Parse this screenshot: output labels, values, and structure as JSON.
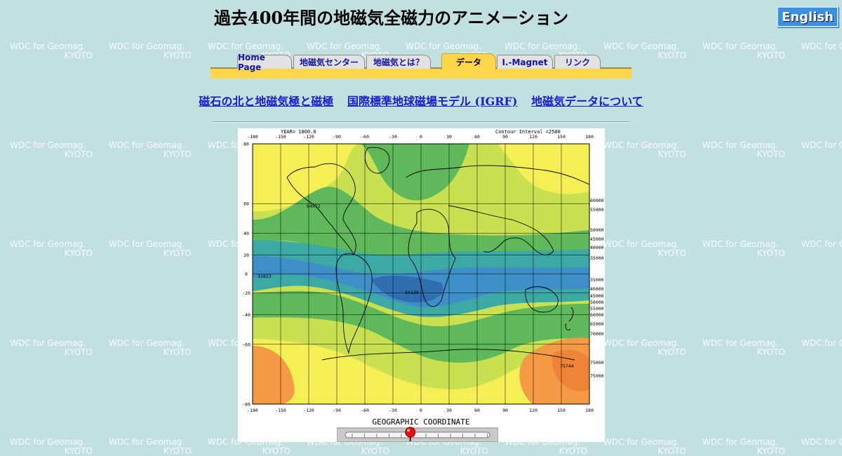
{
  "watermark": {
    "line1": "WDC for Geomag.",
    "line2": "KYOTO"
  },
  "header": {
    "title": "過去400年間の地磁気全磁力のアニメーション",
    "english_button": "English"
  },
  "tabs": [
    {
      "label": "Home Page",
      "active": false
    },
    {
      "label": "地磁気センター",
      "active": false
    },
    {
      "label": "地磁気とは？",
      "active": false
    },
    {
      "label": "データ",
      "active": true
    },
    {
      "label": "I.-Magnet",
      "active": false
    },
    {
      "label": "リンク",
      "active": false
    }
  ],
  "subnav": [
    "磁石の北と地磁気極と磁極",
    "国際標準地球磁場モデル (IGRF)",
    "地磁気データについて"
  ],
  "map": {
    "year_label": "YEAR= 1800.0",
    "contour_label": "Contour  Interval =2500",
    "footer_label": "GEOGRAPHIC COORDINATE",
    "x_ticks": [
      "-180",
      "-150",
      "-120",
      "-90",
      "-60",
      "-30",
      "0",
      "30",
      "60",
      "90",
      "120",
      "150",
      "180"
    ],
    "y_ticks": [
      "80",
      "60",
      "40",
      "20",
      "0",
      "-20",
      "-40",
      "-60",
      "-80"
    ],
    "right_labels": [
      "60000",
      "55000",
      "50000",
      "45000",
      "40000",
      "35000",
      "35000",
      "40000",
      "45000",
      "50000",
      "55000",
      "60000",
      "65000",
      "70000",
      "75000",
      "75000"
    ],
    "point_labels": [
      "64972",
      "32823",
      "34139",
      "75744"
    ],
    "slider_position": 0.45,
    "colors": {
      "orange": "#f49a45",
      "yellow": "#f3ef55",
      "lime": "#c9e050",
      "green": "#5fb85a",
      "teal": "#3ca9a4",
      "blue": "#3e8fc7"
    }
  }
}
